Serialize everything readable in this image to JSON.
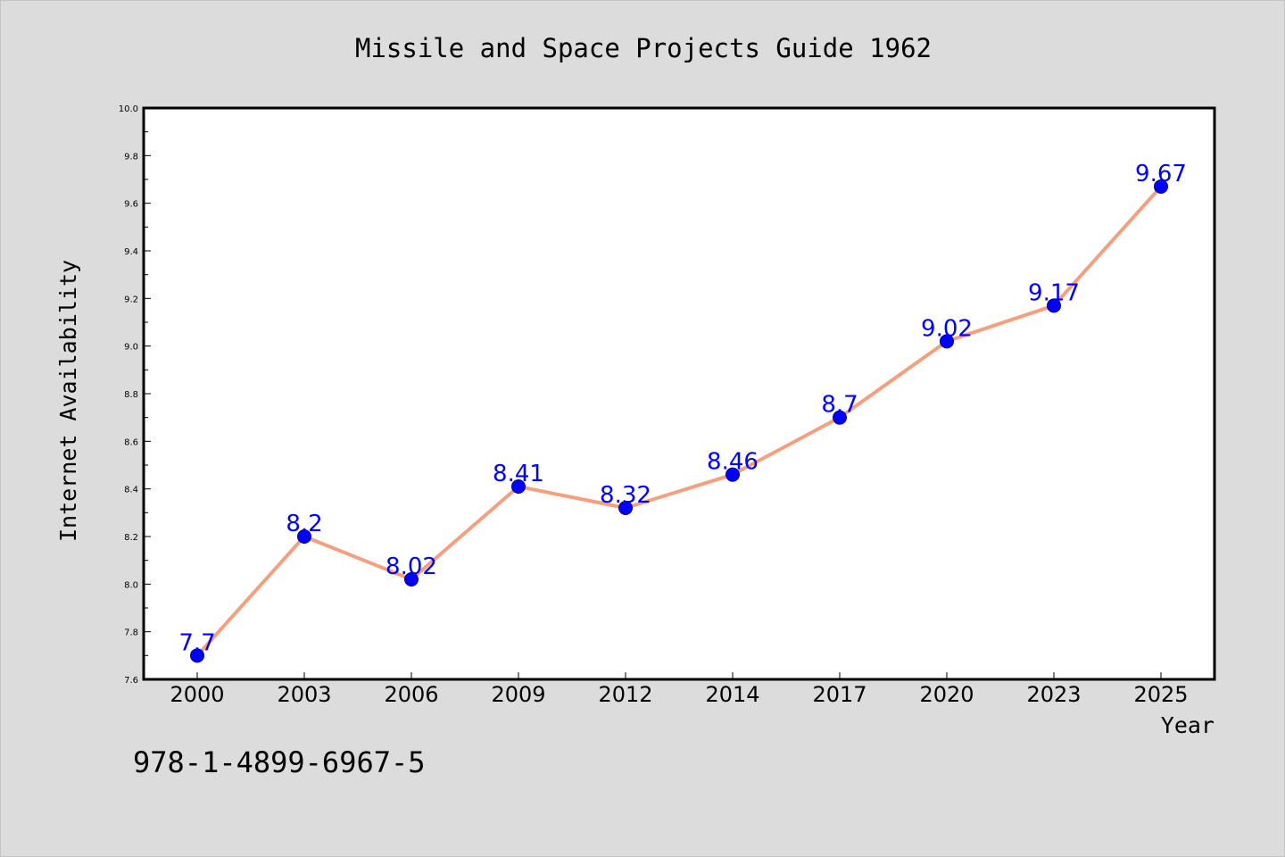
{
  "chart_data": {
    "type": "line",
    "title": "Missile and Space Projects Guide 1962",
    "xlabel": "Year",
    "ylabel": "Internet Availability",
    "categories": [
      "2000",
      "2003",
      "2006",
      "2009",
      "2012",
      "2014",
      "2017",
      "2020",
      "2023",
      "2025"
    ],
    "series": [
      {
        "values": [
          7.7,
          8.2,
          8.02,
          8.41,
          8.32,
          8.46,
          8.7,
          9.02,
          9.17,
          9.67
        ],
        "data_labels": [
          "7.7",
          "8.2",
          "8.02",
          "8.41",
          "8.32",
          "8.46",
          "8.7",
          "9.02",
          "9.17",
          "9.67"
        ]
      }
    ],
    "ylim": [
      7.6,
      10.0
    ],
    "yticks": [
      "7.6",
      "7.8",
      "8.0",
      "8.2",
      "8.4",
      "8.6",
      "8.8",
      "9.0",
      "9.2",
      "9.4",
      "9.6",
      "9.8",
      "10.0"
    ],
    "grid": false,
    "legend": "none",
    "colors": {
      "line": "#f4a07e",
      "marker": "#0000ff",
      "data_label": "#0000ff",
      "plot_background": "#ffffff",
      "figure_background": "#dcdcdc"
    }
  },
  "footer": {
    "isbn": "978-1-4899-6967-5"
  }
}
